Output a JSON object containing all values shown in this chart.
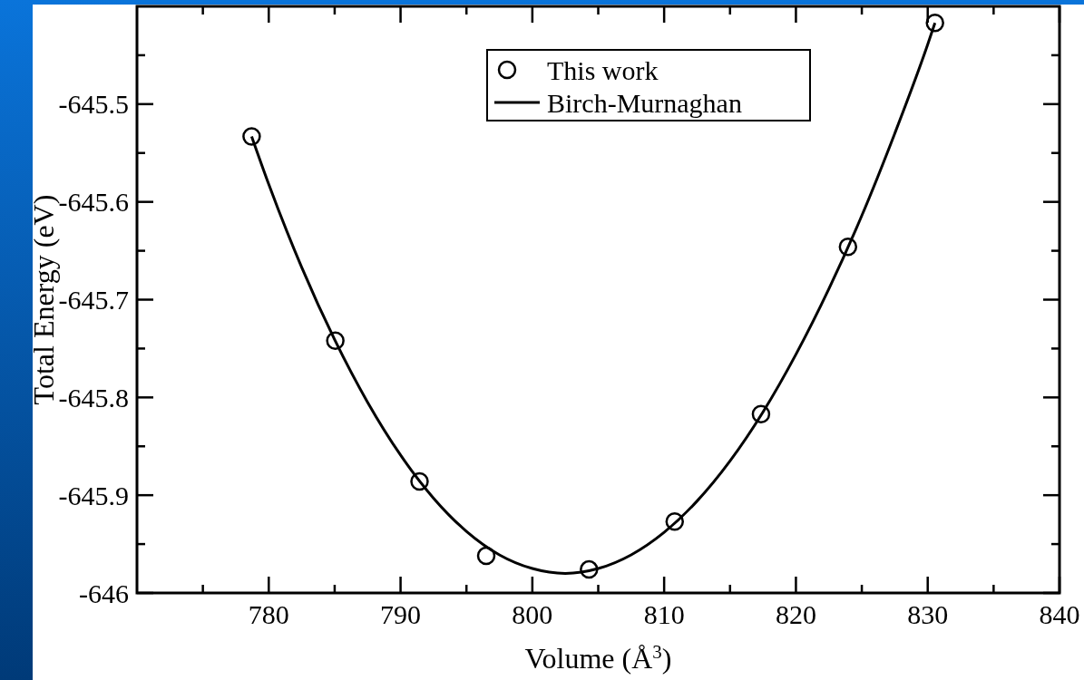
{
  "chart_data": {
    "type": "scatter",
    "xlabel": "Volume (Å$^{3}$)",
    "ylabel": "Total Energy (eV)",
    "xlim": [
      770,
      840
    ],
    "ylim": [
      -646,
      -645.4
    ],
    "xticks": [
      {
        "value": 775,
        "label": null
      },
      780,
      {
        "value": 785,
        "label": null
      },
      790,
      {
        "value": 795,
        "label": null
      },
      800,
      {
        "value": 805,
        "label": null
      },
      810,
      {
        "value": 815,
        "label": null
      },
      820,
      {
        "value": 825,
        "label": null
      },
      830,
      {
        "value": 835,
        "label": null
      },
      840
    ],
    "yticks": [
      -646,
      {
        "value": -645.95,
        "label": null
      },
      -645.9,
      {
        "value": -645.85,
        "label": null
      },
      -645.8,
      {
        "value": -645.75,
        "label": null
      },
      -645.7,
      {
        "value": -645.65,
        "label": null
      },
      -645.6,
      {
        "value": -645.55,
        "label": null
      },
      -645.5,
      {
        "value": -645.45,
        "label": null
      }
    ],
    "grid": false,
    "legend": "top",
    "series": [
      {
        "name": "This work",
        "marker": "circle",
        "color": "#000000",
        "x": [
          778.7,
          785.05,
          791.44,
          796.5,
          804.3,
          810.8,
          817.35,
          823.95,
          830.55
        ],
        "values": [
          -645.533,
          -645.742,
          -645.886,
          -645.962,
          -645.976,
          -645.927,
          -645.817,
          -645.646,
          -645.417
        ]
      },
      {
        "name": "Birch-Murnaghan",
        "type": "line",
        "marker": "none",
        "line_style": "solid",
        "color": "#000000",
        "x": [
          778.7,
          780,
          782.5,
          785,
          787.5,
          790,
          792.5,
          795,
          797.5,
          800,
          802.5,
          805,
          807.5,
          810,
          812.5,
          815,
          817.5,
          820,
          822.5,
          825,
          827.5,
          830,
          830.55
        ],
        "values": [
          -645.533,
          -645.582,
          -645.667,
          -645.741,
          -645.805,
          -645.859,
          -645.903,
          -645.937,
          -645.961,
          -645.975,
          -645.98,
          -645.975,
          -645.961,
          -645.938,
          -645.906,
          -645.865,
          -645.815,
          -645.756,
          -645.689,
          -645.614,
          -645.53,
          -645.439,
          -645.417
        ]
      }
    ]
  }
}
